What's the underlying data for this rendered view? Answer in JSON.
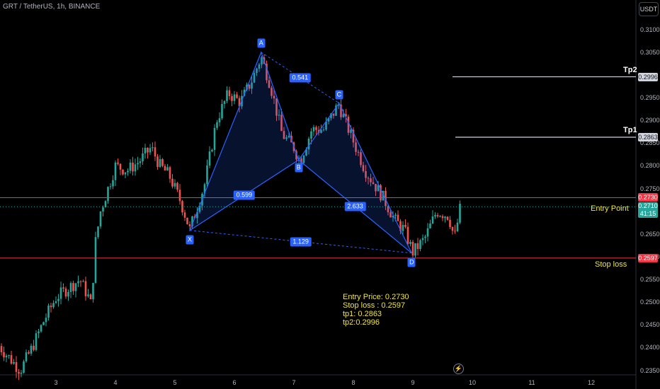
{
  "header": {
    "symbol": "GRT / TetherUS, 1h, BINANCE",
    "currency_button": "USDT"
  },
  "colors": {
    "up": "#26a69a",
    "down": "#ef5350",
    "pattern": "#2962ff",
    "level_red": "#f23645",
    "level_white": "#d1d4dc",
    "annotation": "#f0e442"
  },
  "chart_data": {
    "type": "candlestick",
    "y_axis": {
      "ticks": [
        "0.3100",
        "0.3050",
        "0.2950",
        "0.2900",
        "0.2850",
        "0.2800",
        "0.2750",
        "0.2650",
        "0.2600",
        "0.2550",
        "0.2500",
        "0.2450",
        "0.2400",
        "0.2350"
      ],
      "range": [
        0.234,
        0.3165
      ]
    },
    "x_axis": {
      "ticks": [
        "3",
        "4",
        "5",
        "6",
        "7",
        "8",
        "9",
        "10",
        "11",
        "12"
      ]
    },
    "close_path": [
      [
        2.0,
        0.241
      ],
      [
        2.2,
        0.238
      ],
      [
        2.4,
        0.235
      ],
      [
        2.6,
        0.24
      ],
      [
        2.8,
        0.246
      ],
      [
        3.0,
        0.251
      ],
      [
        3.2,
        0.253
      ],
      [
        3.4,
        0.255
      ],
      [
        3.55,
        0.251
      ],
      [
        3.6,
        0.249
      ],
      [
        3.65,
        0.262
      ],
      [
        3.75,
        0.27
      ],
      [
        3.9,
        0.276
      ],
      [
        4.0,
        0.28
      ],
      [
        4.2,
        0.279
      ],
      [
        4.4,
        0.281
      ],
      [
        4.6,
        0.284
      ],
      [
        4.75,
        0.28
      ],
      [
        4.9,
        0.278
      ],
      [
        5.1,
        0.272
      ],
      [
        5.25,
        0.266
      ],
      [
        5.5,
        0.276
      ],
      [
        5.7,
        0.29
      ],
      [
        5.9,
        0.296
      ],
      [
        6.1,
        0.294
      ],
      [
        6.3,
        0.299
      ],
      [
        6.45,
        0.304
      ],
      [
        6.6,
        0.298
      ],
      [
        6.8,
        0.287
      ],
      [
        7.0,
        0.284
      ],
      [
        7.1,
        0.281
      ],
      [
        7.3,
        0.288
      ],
      [
        7.5,
        0.288
      ],
      [
        7.75,
        0.2935
      ],
      [
        7.95,
        0.287
      ],
      [
        8.2,
        0.279
      ],
      [
        8.5,
        0.273
      ],
      [
        8.7,
        0.268
      ],
      [
        8.85,
        0.266
      ],
      [
        9.0,
        0.261
      ],
      [
        9.2,
        0.264
      ],
      [
        9.4,
        0.27
      ],
      [
        9.6,
        0.269
      ],
      [
        9.7,
        0.264
      ],
      [
        9.8,
        0.271
      ]
    ],
    "harmonic_points": [
      {
        "label": "X",
        "day": 5.25,
        "price": 0.2658
      },
      {
        "label": "A",
        "day": 6.45,
        "price": 0.305
      },
      {
        "label": "B",
        "day": 7.08,
        "price": 0.2813
      },
      {
        "label": "C",
        "day": 7.76,
        "price": 0.2938
      },
      {
        "label": "D",
        "day": 8.98,
        "price": 0.2608
      }
    ],
    "ratios": [
      {
        "value": "0.541",
        "from": "A",
        "to": "C"
      },
      {
        "value": "0.599",
        "from": "X",
        "to": "B"
      },
      {
        "value": "2.633",
        "from": "B",
        "to": "D"
      },
      {
        "value": "1.129",
        "from": "X",
        "to": "D"
      }
    ],
    "levels": [
      {
        "name": "Tp2",
        "price": 0.2996,
        "label": "0.2996",
        "style": "white"
      },
      {
        "name": "Tp1",
        "price": 0.2863,
        "label": "0.2863",
        "style": "white"
      },
      {
        "name": "Entry Point",
        "price": 0.273,
        "label": "0.2730",
        "style": "red"
      },
      {
        "name": "Stop loss",
        "price": 0.2597,
        "label": "0.2597",
        "style": "red"
      }
    ],
    "last_price": {
      "price": 0.271,
      "label": "0.2710",
      "countdown": "41:15"
    }
  },
  "notes": [
    "Entry Price: 0.2730",
    "Stop loss : 0.2597",
    "tp1: 0.2863",
    "tp2:0.2996"
  ]
}
